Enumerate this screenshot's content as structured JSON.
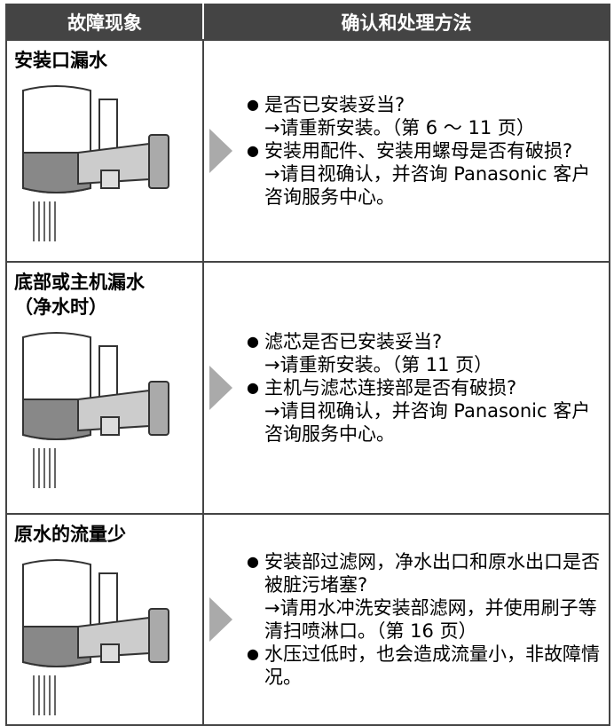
{
  "table": {
    "headers": [
      "故障现象",
      "确认和处理方法"
    ],
    "rows": [
      {
        "symptom": "安装口漏水",
        "items": [
          {
            "check": "是否已安装妥当?",
            "action": "→请重新安装。（第 6 ～ 11 页）"
          },
          {
            "check": "安装用配件、安装用螺母是否有破损?",
            "action": "→请目视确认，并咨询 Panasonic 客户咨询服务中心。"
          }
        ]
      },
      {
        "symptom": "底部或主机漏水\n（净水时）",
        "items": [
          {
            "check": "滤芯是否已安装妥当?",
            "action": "→请重新安装。（第 11 页）"
          },
          {
            "check": "主机与滤芯连接部是否有破损?",
            "action": "→请目视确认，并咨询 Panasonic 客户咨询服务中心。"
          }
        ]
      },
      {
        "symptom": "原水的流量少",
        "items": [
          {
            "check": "安装部过滤网，净水出口和原水出口是否被脏污堵塞?",
            "action": "→请用水冲洗安装部滤网，并使用刷子等清扫喷淋口。（第 16 页）"
          },
          {
            "check": "水压过低时，也会造成流量小，非故障情况。"
          }
        ]
      }
    ]
  }
}
